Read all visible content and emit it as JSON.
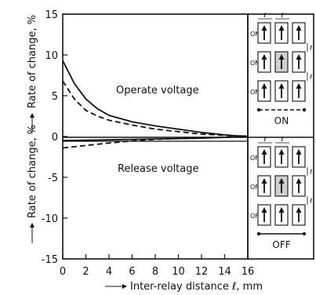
{
  "chart_data": {
    "type": "line",
    "xlabel": "Inter-relay distance ℓ, mm",
    "ylabel_top": "Rate of change, %",
    "ylabel_bottom": "Rate of change, %",
    "xlim": [
      0,
      16
    ],
    "ylim": [
      -15,
      15
    ],
    "x_ticks": [
      0,
      2,
      4,
      6,
      8,
      10,
      12,
      14,
      16
    ],
    "y_ticks": [
      15,
      10,
      5,
      0,
      -5,
      -10,
      -15
    ],
    "y_tick_labels": [
      "15",
      "10",
      "5",
      "0",
      "-5",
      "-10",
      "-15"
    ],
    "annotations": {
      "operate": "Operate voltage",
      "release": "Release voltage"
    },
    "series": [
      {
        "group": "operate",
        "mode": "ON",
        "style": "solid",
        "x": [
          0,
          1,
          2,
          3,
          4,
          6,
          8,
          10,
          12,
          14,
          15,
          16
        ],
        "y": [
          9.3,
          6.5,
          4.6,
          3.4,
          2.6,
          1.8,
          1.3,
          0.9,
          0.5,
          0.2,
          0.1,
          0.05
        ]
      },
      {
        "group": "operate",
        "mode": "OFF",
        "style": "dashed",
        "x": [
          0,
          1,
          2,
          3,
          4,
          6,
          8,
          10,
          12,
          14,
          15,
          16
        ],
        "y": [
          6.8,
          4.6,
          3.2,
          2.5,
          2.0,
          1.4,
          0.9,
          0.6,
          0.3,
          0.15,
          0.05,
          0.0
        ]
      },
      {
        "group": "release",
        "mode": "ON",
        "style": "solid",
        "x": [
          0,
          2,
          4,
          6,
          8,
          10,
          12,
          14,
          16
        ],
        "y": [
          -0.5,
          -0.45,
          -0.4,
          -0.35,
          -0.3,
          -0.25,
          -0.2,
          -0.1,
          0.0
        ]
      },
      {
        "group": "release",
        "mode": "OFF",
        "style": "dashed",
        "x": [
          0,
          2,
          4,
          6,
          8,
          10,
          12,
          14,
          16
        ],
        "y": [
          -1.4,
          -1.1,
          -0.8,
          -0.55,
          -0.35,
          -0.25,
          -0.2,
          -0.1,
          0.0
        ]
      }
    ]
  },
  "legend": {
    "ell": "ℓ",
    "on_label": "ON",
    "off_label": "OFF",
    "row_on": "ON",
    "row_off": "OFF"
  }
}
